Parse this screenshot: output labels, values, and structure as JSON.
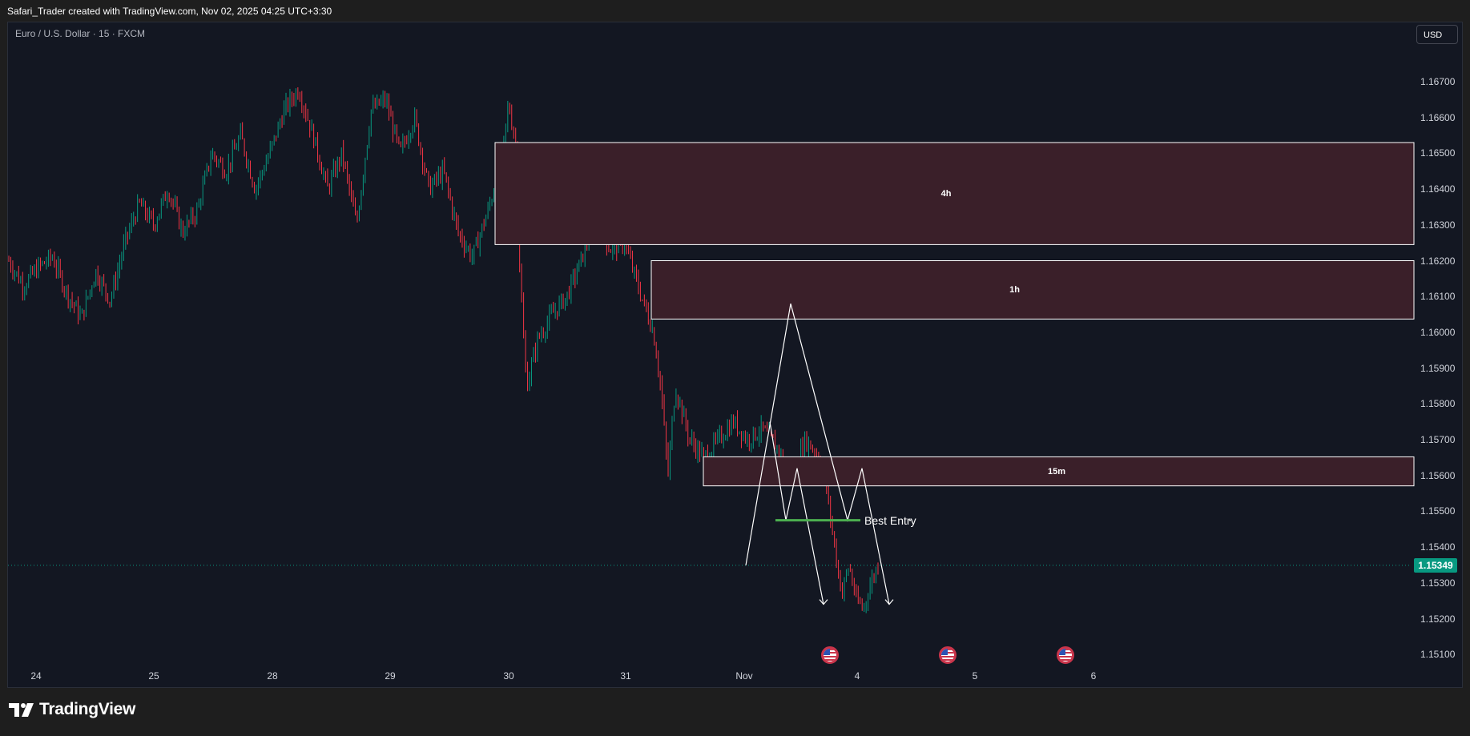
{
  "credit": "Safari_Trader created with TradingView.com, Nov 02, 2025 04:25 UTC+3:30",
  "symbol": "Euro / U.S. Dollar · 15 · FXCM",
  "currency_button": "USD",
  "current_price": "1.15349",
  "price_axis": [
    "1.16700",
    "1.16600",
    "1.16500",
    "1.16400",
    "1.16300",
    "1.16200",
    "1.16100",
    "1.16000",
    "1.15900",
    "1.15800",
    "1.15700",
    "1.15600",
    "1.15500",
    "1.15400",
    "1.15300",
    "1.15200",
    "1.15100"
  ],
  "time_axis": [
    "24",
    "25",
    "28",
    "29",
    "30",
    "31",
    "Nov",
    "4",
    "5",
    "6"
  ],
  "zones": [
    {
      "label": "4h",
      "top": 1.1653,
      "bottom": 1.16245
    },
    {
      "label": "1h",
      "top": 1.162,
      "bottom": 1.16037
    },
    {
      "label": "15m",
      "top": 1.15652,
      "bottom": 1.15571
    }
  ],
  "best_entry": {
    "label": "Best Entry",
    "price": 1.15475,
    "color": "#4caf50"
  },
  "brand": "TradingView",
  "colors": {
    "up": "#089981",
    "down": "#f23645",
    "zone_fill": "#3a1f29",
    "background": "#131722"
  },
  "events": [
    "us-flag-icon",
    "us-flag-icon",
    "us-flag-icon"
  ],
  "chart_data": {
    "type": "candlestick",
    "title": "Euro / U.S. Dollar · 15 · FXCM",
    "ylim": [
      1.1505,
      1.1674
    ],
    "x_ticks": [
      "24",
      "25",
      "28",
      "29",
      "30",
      "31",
      "Nov",
      "4",
      "5",
      "6"
    ],
    "path_close": [
      [
        0,
        1.162
      ],
      [
        4,
        1.1613
      ],
      [
        8,
        1.1618
      ],
      [
        12,
        1.1621
      ],
      [
        16,
        1.1611
      ],
      [
        20,
        1.1604
      ],
      [
        24,
        1.1617
      ],
      [
        28,
        1.1609
      ],
      [
        32,
        1.1625
      ],
      [
        36,
        1.1636
      ],
      [
        40,
        1.163
      ],
      [
        44,
        1.164
      ],
      [
        48,
        1.1628
      ],
      [
        52,
        1.1634
      ],
      [
        56,
        1.165
      ],
      [
        60,
        1.1645
      ],
      [
        64,
        1.1655
      ],
      [
        68,
        1.164
      ],
      [
        72,
        1.165
      ],
      [
        76,
        1.1662
      ],
      [
        80,
        1.1668
      ],
      [
        84,
        1.1655
      ],
      [
        88,
        1.164
      ],
      [
        92,
        1.165
      ],
      [
        96,
        1.163
      ],
      [
        100,
        1.1662
      ],
      [
        104,
        1.1665
      ],
      [
        108,
        1.165
      ],
      [
        112,
        1.166
      ],
      [
        116,
        1.164
      ],
      [
        120,
        1.1645
      ],
      [
        124,
        1.1628
      ],
      [
        128,
        1.1621
      ],
      [
        132,
        1.1633
      ],
      [
        136,
        1.1647
      ],
      [
        138,
        1.1664
      ],
      [
        140,
        1.1652
      ],
      [
        141,
        1.162
      ],
      [
        142,
        1.16
      ],
      [
        143,
        1.1585
      ],
      [
        146,
        1.1598
      ],
      [
        150,
        1.1605
      ],
      [
        154,
        1.161
      ],
      [
        158,
        1.162
      ],
      [
        162,
        1.1633
      ],
      [
        166,
        1.1623
      ],
      [
        170,
        1.1625
      ],
      [
        174,
        1.1612
      ],
      [
        178,
        1.16
      ],
      [
        180,
        1.1585
      ],
      [
        182,
        1.156
      ],
      [
        184,
        1.1585
      ],
      [
        188,
        1.157
      ],
      [
        192,
        1.1565
      ],
      [
        196,
        1.157
      ],
      [
        200,
        1.1575
      ],
      [
        204,
        1.157
      ],
      [
        208,
        1.1573
      ],
      [
        212,
        1.1568
      ],
      [
        216,
        1.156
      ],
      [
        220,
        1.157
      ],
      [
        224,
        1.1565
      ],
      [
        226,
        1.1555
      ],
      [
        228,
        1.154
      ],
      [
        230,
        1.1527
      ],
      [
        232,
        1.1535
      ],
      [
        234,
        1.1525
      ],
      [
        236,
        1.1523
      ],
      [
        238,
        1.153
      ],
      [
        240,
        1.1535
      ]
    ],
    "projection": {
      "main": [
        [
          1.15349,
          "p0"
        ],
        [
          1.1608,
          "a"
        ],
        [
          1.15475,
          "b"
        ],
        [
          1.1562,
          "c"
        ],
        [
          1.1524,
          "d"
        ]
      ],
      "secondary": [
        [
          1.1575,
          "a"
        ],
        [
          1.15475,
          "b"
        ],
        [
          1.1562,
          "c"
        ],
        [
          1.1524,
          "d"
        ]
      ]
    }
  }
}
